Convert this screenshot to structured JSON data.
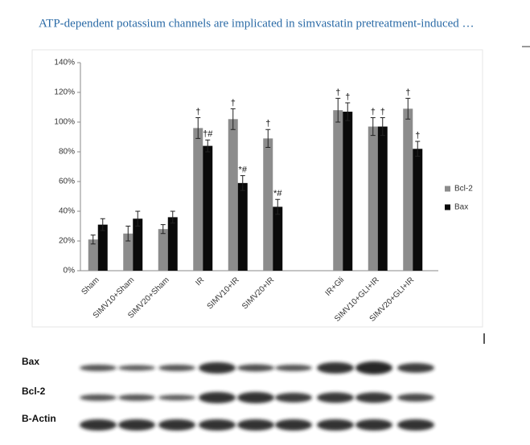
{
  "header": {
    "title": "ATP-dependent potassium channels are implicated in simvastatin pretreatment-induced …"
  },
  "chart_data": {
    "type": "bar",
    "categories": [
      "Sham",
      "SIMV10+Sham",
      "SIMV20+Sham",
      "IR",
      "SIMV10+IR",
      "SIMV20+IR",
      null,
      "IR+Gli",
      "SIMV10+GLI+IR",
      "SIMV20+GLI+IR"
    ],
    "series": [
      {
        "name": "Bcl-2",
        "color": "#8c8c8c",
        "values": [
          21,
          25,
          28,
          96,
          102,
          89,
          null,
          108,
          97,
          109
        ],
        "errors": [
          3,
          5,
          3,
          7,
          7,
          6,
          null,
          8,
          6,
          7
        ],
        "annotations": [
          null,
          null,
          null,
          "†",
          "†",
          "†",
          null,
          "†",
          "†",
          "†"
        ]
      },
      {
        "name": "Bax",
        "color": "#0a0a0a",
        "values": [
          31,
          35,
          36,
          84,
          59,
          43,
          null,
          107,
          97,
          82
        ],
        "errors": [
          4,
          5,
          4,
          4,
          5,
          5,
          null,
          6,
          6,
          5
        ],
        "annotations": [
          null,
          null,
          null,
          "†#",
          "*#",
          "*#",
          null,
          "†",
          "†",
          "†"
        ]
      }
    ],
    "ylim": [
      0,
      140
    ],
    "yticks": [
      {
        "value": 0,
        "label": "0%"
      },
      {
        "value": 20,
        "label": "20%"
      },
      {
        "value": 40,
        "label": "40%"
      },
      {
        "value": 60,
        "label": "60%"
      },
      {
        "value": 80,
        "label": "80%"
      },
      {
        "value": 100,
        "label": "100%"
      },
      {
        "value": 120,
        "label": "120%"
      },
      {
        "value": 140,
        "label": "140%"
      }
    ],
    "grid": false,
    "legend": "right"
  },
  "blot": {
    "labels": [
      "Bax",
      "Bcl-2",
      "B-Actin"
    ]
  }
}
